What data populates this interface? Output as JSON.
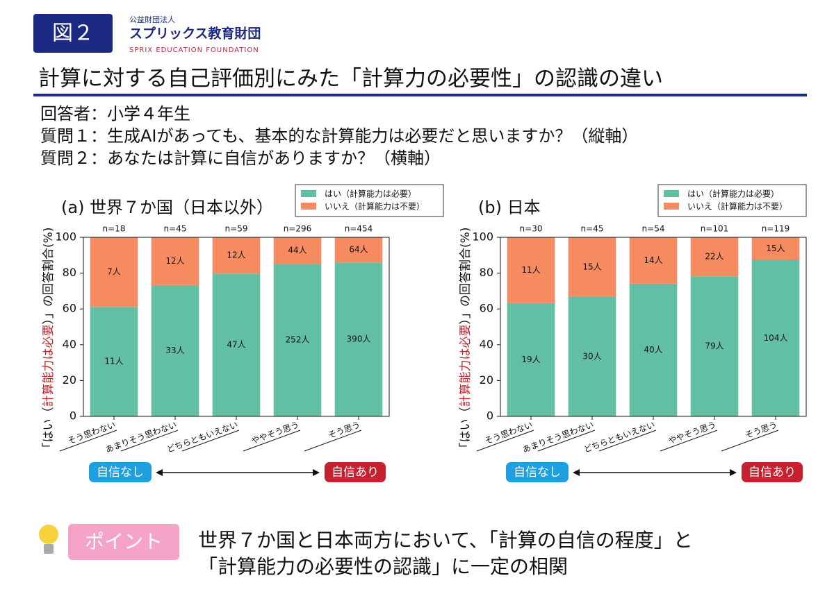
{
  "header": {
    "badge": "図２",
    "org_type": "公益財団法人",
    "org_name": "スプリックス教育財団",
    "org_name_en": "SPRIX EDUCATION FOUNDATION",
    "title": "計算に対する自己評価別にみた「計算力の必要性」の認識の違い"
  },
  "survey": {
    "lines": [
      "回答者：小学４年生",
      "質問１：生成AIがあっても、基本的な計算能力は必要だと思いますか？（縦軸）",
      "質問２：あなたは計算に自信がありますか？（横軸）"
    ]
  },
  "chart_data": [
    {
      "type": "bar",
      "stacked": true,
      "subtitle": "(a) 世界７か国（日本以外）",
      "y_label_parts": [
        "「はい（",
        "計算能力は必要",
        "）」の回答割合(%)"
      ],
      "categories": [
        "そう思わない",
        "あまりそう思わない",
        "どちらともいえない",
        "ややそう思う",
        "そう思う"
      ],
      "n_labels": [
        "n=18",
        "n=45",
        "n=59",
        "n=296",
        "n=454"
      ],
      "series": [
        {
          "name": "はい（計算能力は必要）",
          "color": "#63bfa4",
          "values": [
            61.1,
            73.3,
            79.7,
            85.1,
            85.9
          ],
          "count_labels": [
            "11人",
            "33人",
            "47人",
            "252人",
            "390人"
          ]
        },
        {
          "name": "いいえ（計算能力は不要）",
          "color": "#f68a60",
          "values": [
            38.9,
            26.7,
            20.3,
            14.9,
            14.1
          ],
          "count_labels": [
            "7人",
            "12人",
            "12人",
            "44人",
            "64人"
          ]
        }
      ],
      "ylim": [
        0,
        100
      ],
      "yticks": [
        0,
        20,
        40,
        60,
        80,
        100
      ],
      "scale_labels": {
        "low": "自信なし",
        "high": "自信あり"
      }
    },
    {
      "type": "bar",
      "stacked": true,
      "subtitle": "(b) 日本",
      "y_label_parts": [
        "「はい（",
        "計算能力は必要",
        "）」の回答割合(%)"
      ],
      "categories": [
        "そう思わない",
        "あまりそう思わない",
        "どちらともいえない",
        "ややそう思う",
        "そう思う"
      ],
      "n_labels": [
        "n=30",
        "n=45",
        "n=54",
        "n=101",
        "n=119"
      ],
      "series": [
        {
          "name": "はい（計算能力は必要）",
          "color": "#63bfa4",
          "values": [
            63.3,
            66.7,
            74.1,
            78.2,
            87.4
          ],
          "count_labels": [
            "19人",
            "30人",
            "40人",
            "79人",
            "104人"
          ]
        },
        {
          "name": "いいえ（計算能力は不要）",
          "color": "#f68a60",
          "values": [
            36.7,
            33.3,
            25.9,
            21.8,
            12.6
          ],
          "count_labels": [
            "11人",
            "15人",
            "14人",
            "22人",
            "15人"
          ]
        }
      ],
      "ylim": [
        0,
        100
      ],
      "yticks": [
        0,
        20,
        40,
        60,
        80,
        100
      ],
      "scale_labels": {
        "low": "自信なし",
        "high": "自信あり"
      }
    }
  ],
  "point": {
    "badge": "ポイント",
    "lines": [
      "世界７か国と日本両方において、「計算の自信の程度」と",
      "「計算能力の必要性の認識」に一定の相関"
    ]
  }
}
